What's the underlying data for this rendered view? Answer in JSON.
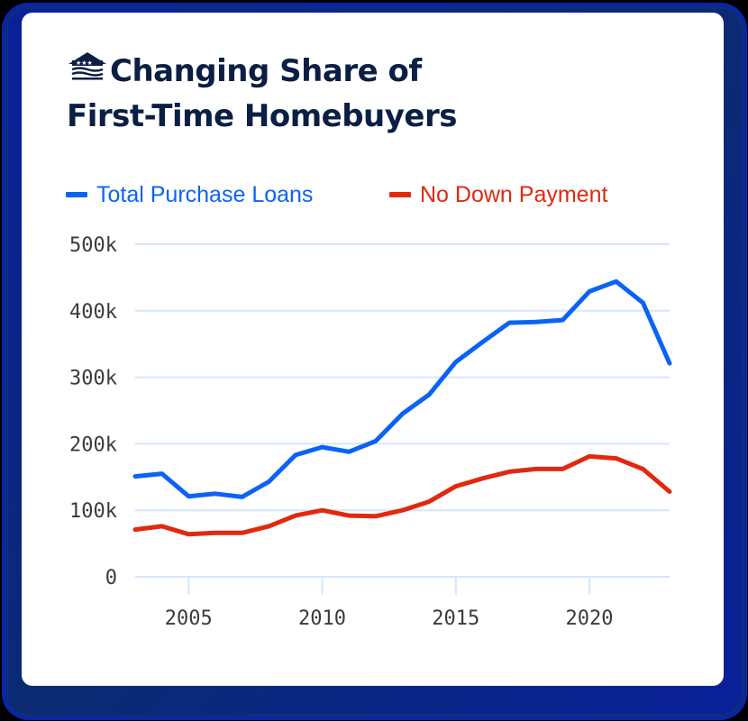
{
  "header": {
    "logo_icon": "house-flag-icon",
    "title_line1": "Changing Share of",
    "title_line2": "First-Time Homebuyers"
  },
  "legend": [
    {
      "label": "Total Purchase Loans",
      "color": "#0b63f6"
    },
    {
      "label": "No Down Payment",
      "color": "#e0290f"
    }
  ],
  "colors": {
    "title": "#0b1f44",
    "grid": "#d6e6fb",
    "frame": "#0b2a72",
    "background": "#ffffff"
  },
  "chart_data": {
    "type": "line",
    "title": "Changing Share of First-Time Homebuyers",
    "xlabel": "",
    "ylabel": "",
    "x": [
      2003,
      2004,
      2005,
      2006,
      2007,
      2008,
      2009,
      2010,
      2011,
      2012,
      2013,
      2014,
      2015,
      2016,
      2017,
      2018,
      2019,
      2020,
      2021,
      2022,
      2023
    ],
    "series": [
      {
        "name": "Total Purchase Loans",
        "color": "#0b63f6",
        "values": [
          151000,
          155000,
          121000,
          125000,
          120000,
          143000,
          183000,
          195000,
          188000,
          204000,
          245000,
          274000,
          323000,
          353000,
          382000,
          383000,
          386000,
          429000,
          444000,
          412000,
          321000
        ]
      },
      {
        "name": "No Down Payment",
        "color": "#e0290f",
        "values": [
          71000,
          76000,
          64000,
          66000,
          66000,
          76000,
          92000,
          100000,
          92000,
          91000,
          100000,
          113000,
          136000,
          148000,
          158000,
          162000,
          162000,
          181000,
          178000,
          162000,
          128000
        ]
      }
    ],
    "y_ticks": [
      0,
      100000,
      200000,
      300000,
      400000,
      500000
    ],
    "y_tick_labels": [
      "0",
      "100k",
      "200k",
      "300k",
      "400k",
      "500k"
    ],
    "x_ticks": [
      2005,
      2010,
      2015,
      2020
    ],
    "x_tick_labels": [
      "2005",
      "2010",
      "2015",
      "2020"
    ],
    "ylim": [
      0,
      500000
    ],
    "xlim": [
      2003,
      2023
    ],
    "grid": true,
    "legend_position": "top-left"
  }
}
